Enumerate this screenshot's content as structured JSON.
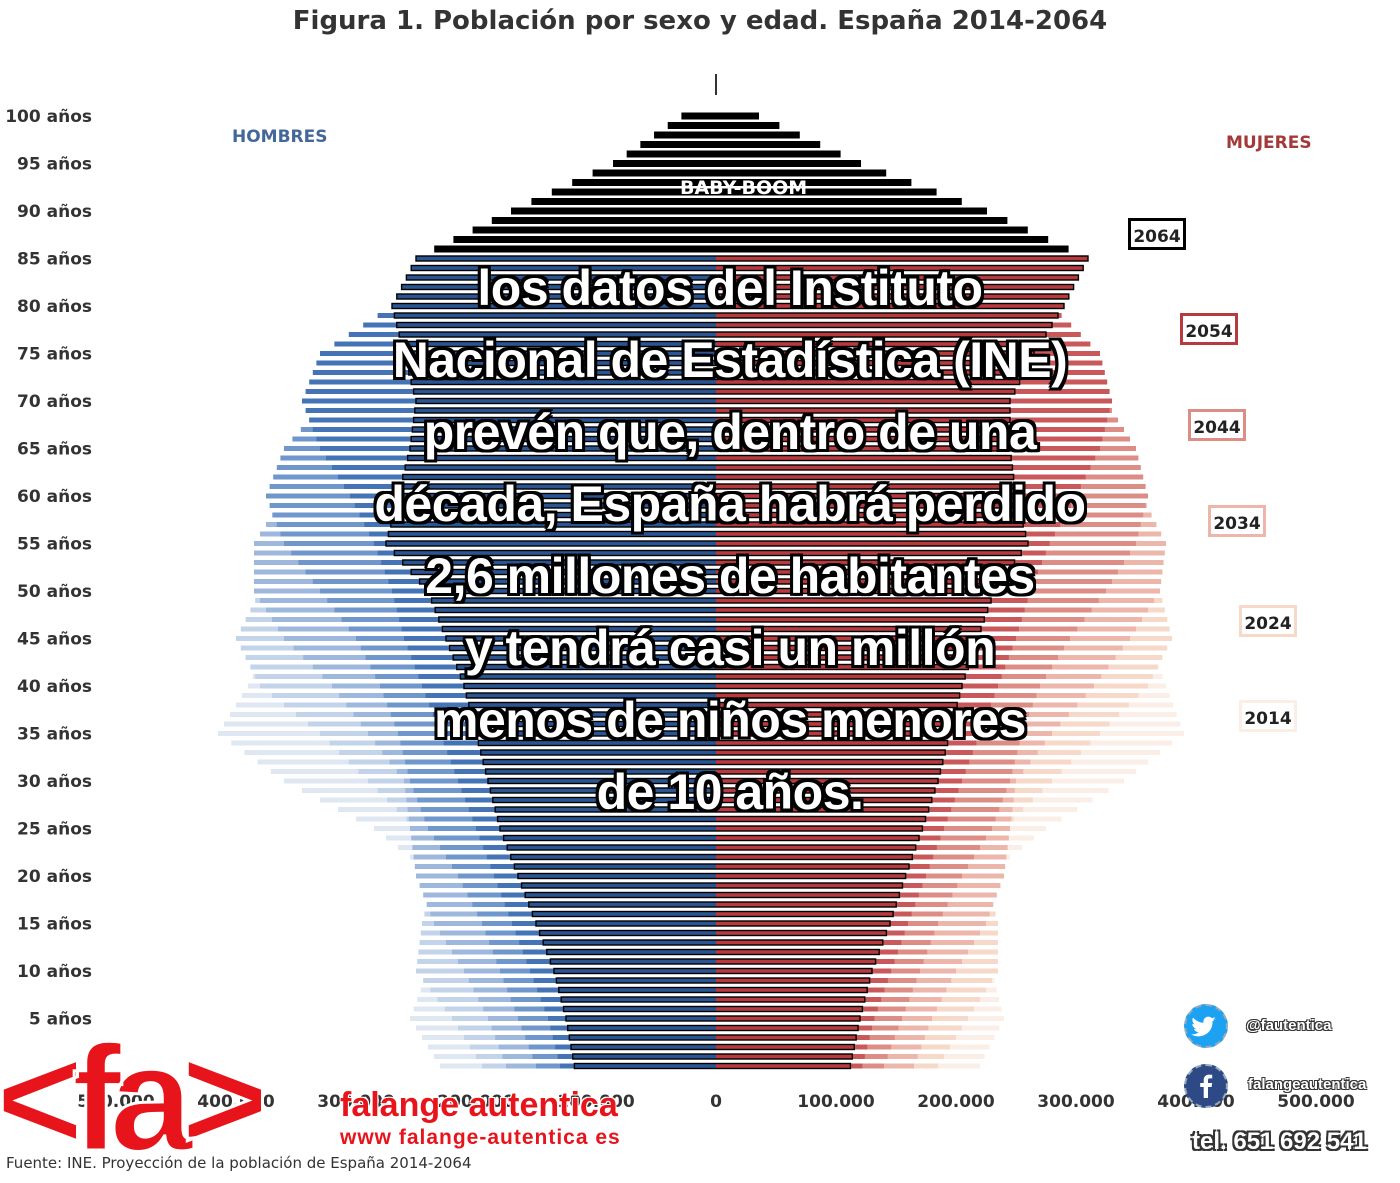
{
  "title": "Figura 1. Población por sexo y edad. España 2014-2064",
  "overlay_lines": [
    "los datos del Instituto",
    "Nacional de Estadística (INE)",
    "prevén que, dentro de una",
    "década, España habrá perdido",
    "2,6 millones de habitantes",
    "y tendrá casi un millón",
    "menos de niños menores",
    "de 10 años."
  ],
  "source": "Fuente: INE. Proyección de la población de España 2014-2064",
  "brand": {
    "logo_text": "<fa>",
    "name": "falange autentica",
    "url": "www falange-autentica es",
    "twitter": "@fautentica",
    "facebook": "falangeautentica",
    "phone": "tel. 651 692 541"
  },
  "chart_data": {
    "type": "population-pyramid",
    "title": "Figura 1. Población por sexo y edad. España 2014-2064",
    "left_label": "HOMBRES",
    "right_label": "MUJERES",
    "annotation": "BABY-BOOM",
    "age_labels": [
      "100 años",
      "95 años",
      "90 años",
      "85 años",
      "80 años",
      "75 años",
      "70 años",
      "65 años",
      "60 años",
      "55 años",
      "50 años",
      "45 años",
      "40 años",
      "35 años",
      "30 años",
      "25 años",
      "20 años",
      "15 años",
      "10 años",
      "5 años"
    ],
    "age_label_values": [
      100,
      95,
      90,
      85,
      80,
      75,
      70,
      65,
      60,
      55,
      50,
      45,
      40,
      35,
      30,
      25,
      20,
      15,
      10,
      5
    ],
    "x_ticks_left": [
      "500.000",
      "400.000",
      "300.000",
      "200.000",
      "100.000"
    ],
    "x_ticks_left_values": [
      500000,
      400000,
      300000,
      200000,
      100000
    ],
    "x_ticks_right": [
      "0",
      "100.000",
      "200.000",
      "300.000",
      "400.000",
      "500.000"
    ],
    "x_ticks_right_values": [
      0,
      100000,
      200000,
      300000,
      400000,
      500000
    ],
    "xlim": [
      -500000,
      500000
    ],
    "ylim": [
      0,
      100
    ],
    "series": [
      {
        "name": "2014",
        "male_color": "#dfe7f3",
        "female_color": "#fbeee6",
        "ages": [
          0,
          5,
          10,
          15,
          20,
          25,
          30,
          35,
          40,
          45,
          50,
          55,
          60,
          65,
          70,
          75,
          80,
          85,
          90,
          95,
          100
        ],
        "male": [
          230000,
          255000,
          240000,
          220000,
          235000,
          285000,
          360000,
          415000,
          390000,
          370000,
          345000,
          300000,
          260000,
          235000,
          190000,
          150000,
          105000,
          60000,
          25000,
          7000,
          1500
        ],
        "female": [
          220000,
          240000,
          230000,
          210000,
          225000,
          275000,
          340000,
          390000,
          375000,
          360000,
          345000,
          310000,
          270000,
          250000,
          215000,
          185000,
          150000,
          100000,
          50000,
          16000,
          3000
        ]
      },
      {
        "name": "2024",
        "male_color": "#c3d3ea",
        "female_color": "#f6d9c8",
        "ages": [
          0,
          5,
          10,
          15,
          20,
          25,
          30,
          35,
          40,
          45,
          50,
          55,
          60,
          65,
          70,
          75,
          80,
          85,
          90,
          95,
          100
        ],
        "male": [
          195000,
          220000,
          250000,
          245000,
          235000,
          250000,
          290000,
          330000,
          380000,
          400000,
          380000,
          355000,
          320000,
          280000,
          235000,
          190000,
          140000,
          85000,
          40000,
          12000,
          2500
        ],
        "female": [
          185000,
          210000,
          235000,
          235000,
          225000,
          240000,
          280000,
          320000,
          360000,
          380000,
          370000,
          355000,
          325000,
          290000,
          255000,
          220000,
          185000,
          135000,
          75000,
          25000,
          5000
        ]
      },
      {
        "name": "2034",
        "male_color": "#9db8dc",
        "female_color": "#ecb6ab",
        "ages": [
          0,
          5,
          10,
          15,
          20,
          25,
          30,
          35,
          40,
          45,
          50,
          55,
          60,
          65,
          70,
          75,
          80,
          85,
          90,
          95,
          100
        ],
        "male": [
          175000,
          190000,
          210000,
          235000,
          250000,
          255000,
          260000,
          290000,
          320000,
          360000,
          385000,
          385000,
          360000,
          325000,
          285000,
          235000,
          180000,
          115000,
          55000,
          17000,
          3500
        ],
        "female": [
          165000,
          180000,
          200000,
          225000,
          240000,
          245000,
          250000,
          280000,
          315000,
          345000,
          370000,
          375000,
          355000,
          325000,
          295000,
          260000,
          220000,
          165000,
          95000,
          33000,
          7000
        ]
      },
      {
        "name": "2044",
        "male_color": "#6f97cc",
        "female_color": "#dc8e86",
        "ages": [
          0,
          5,
          10,
          15,
          20,
          25,
          30,
          35,
          40,
          45,
          50,
          55,
          60,
          65,
          70,
          75,
          80,
          85,
          90,
          95,
          100
        ],
        "male": [
          150000,
          165000,
          180000,
          195000,
          215000,
          240000,
          255000,
          265000,
          280000,
          300000,
          330000,
          360000,
          375000,
          360000,
          325000,
          280000,
          220000,
          145000,
          70000,
          22000,
          4500
        ],
        "female": [
          140000,
          155000,
          170000,
          185000,
          205000,
          230000,
          245000,
          255000,
          270000,
          295000,
          325000,
          350000,
          360000,
          350000,
          325000,
          295000,
          255000,
          190000,
          110000,
          40000,
          9000
        ]
      },
      {
        "name": "2054",
        "male_color": "#4474b5",
        "female_color": "#c9585a",
        "ages": [
          0,
          5,
          10,
          15,
          20,
          25,
          30,
          35,
          40,
          45,
          50,
          55,
          60,
          65,
          70,
          75,
          80,
          85,
          90,
          95,
          100
        ],
        "male": [
          130000,
          140000,
          155000,
          170000,
          185000,
          200000,
          215000,
          230000,
          245000,
          260000,
          270000,
          285000,
          305000,
          330000,
          345000,
          330000,
          270000,
          180000,
          90000,
          28000,
          6000
        ],
        "female": [
          122000,
          132000,
          146000,
          160000,
          175000,
          190000,
          205000,
          220000,
          235000,
          250000,
          262000,
          278000,
          300000,
          320000,
          330000,
          320000,
          280000,
          220000,
          130000,
          48000,
          11000
        ]
      },
      {
        "name": "2064",
        "male_color": "#2b5592",
        "female_color": "#b63a3e",
        "ages": [
          0,
          5,
          10,
          15,
          20,
          25,
          30,
          35,
          40,
          45,
          50,
          55,
          60,
          65,
          70,
          75,
          80,
          85,
          90,
          95,
          100
        ],
        "male": [
          118000,
          125000,
          135000,
          150000,
          165000,
          180000,
          190000,
          200000,
          210000,
          225000,
          240000,
          275000,
          265000,
          255000,
          250000,
          260000,
          270000,
          250000,
          170000,
          85000,
          28000
        ],
        "female": [
          112000,
          120000,
          130000,
          145000,
          158000,
          172000,
          185000,
          195000,
          205000,
          218000,
          232000,
          260000,
          250000,
          245000,
          245000,
          265000,
          290000,
          310000,
          225000,
          120000,
          35000
        ]
      }
    ],
    "legend": [
      "2064",
      "2054",
      "2044",
      "2034",
      "2024",
      "2014"
    ],
    "legend_placement": "right"
  }
}
